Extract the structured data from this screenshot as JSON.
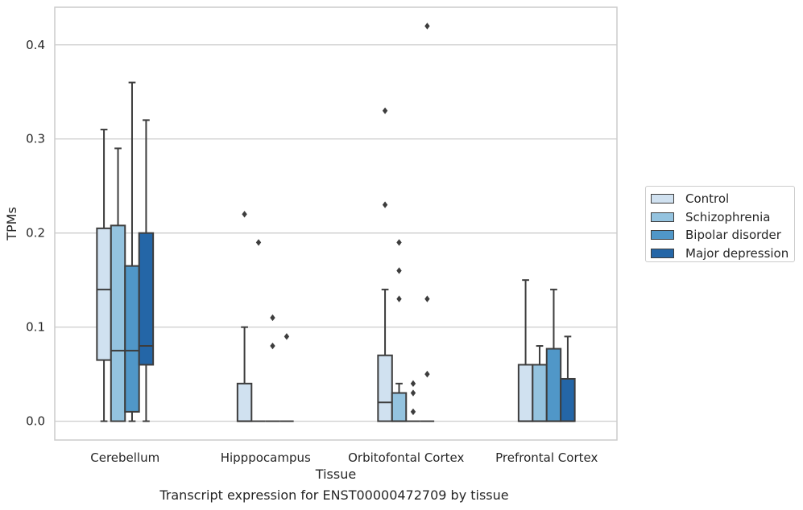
{
  "caption": "Transcript expression for ENST00000472709 by tissue",
  "chart_data": {
    "type": "box",
    "title": "",
    "xlabel": "Tissue",
    "ylabel": "TPMs",
    "ylim": [
      -0.02,
      0.44
    ],
    "yticks": [
      "0.0",
      "0.1",
      "0.2",
      "0.3",
      "0.4"
    ],
    "ytick_values": [
      0.0,
      0.1,
      0.2,
      0.3,
      0.4
    ],
    "grid": true,
    "legend_position": "right",
    "categories": [
      "Cerebellum",
      "Hipppocampus",
      "Orbitofontal Cortex",
      "Prefrontal Cortex"
    ],
    "series": [
      {
        "name": "Control",
        "color": "#d0e1f0",
        "boxes": [
          {
            "whisker_low": 0.0,
            "q1": 0.065,
            "median": 0.14,
            "q3": 0.205,
            "whisker_high": 0.31,
            "outliers": []
          },
          {
            "whisker_low": 0.0,
            "q1": 0.0,
            "median": 0.0,
            "q3": 0.04,
            "whisker_high": 0.1,
            "outliers": [
              0.22
            ]
          },
          {
            "whisker_low": 0.0,
            "q1": 0.0,
            "median": 0.02,
            "q3": 0.07,
            "whisker_high": 0.14,
            "outliers": [
              0.33,
              0.23
            ]
          },
          {
            "whisker_low": 0.0,
            "q1": 0.0,
            "median": 0.0,
            "q3": 0.06,
            "whisker_high": 0.15,
            "outliers": []
          }
        ]
      },
      {
        "name": "Schizophrenia",
        "color": "#94c3df",
        "boxes": [
          {
            "whisker_low": 0.0,
            "q1": 0.0,
            "median": 0.075,
            "q3": 0.208,
            "whisker_high": 0.29,
            "outliers": []
          },
          {
            "whisker_low": 0.0,
            "q1": 0.0,
            "median": 0.0,
            "q3": 0.0,
            "whisker_high": 0.0,
            "outliers": [
              0.19
            ]
          },
          {
            "whisker_low": 0.0,
            "q1": 0.0,
            "median": 0.0,
            "q3": 0.03,
            "whisker_high": 0.04,
            "outliers": [
              0.19,
              0.16,
              0.13
            ]
          },
          {
            "whisker_low": 0.0,
            "q1": 0.0,
            "median": 0.0,
            "q3": 0.06,
            "whisker_high": 0.08,
            "outliers": []
          }
        ]
      },
      {
        "name": "Bipolar disorder",
        "color": "#5097c8",
        "boxes": [
          {
            "whisker_low": 0.0,
            "q1": 0.01,
            "median": 0.075,
            "q3": 0.165,
            "whisker_high": 0.36,
            "outliers": []
          },
          {
            "whisker_low": 0.0,
            "q1": 0.0,
            "median": 0.0,
            "q3": 0.0,
            "whisker_high": 0.0,
            "outliers": [
              0.11,
              0.08
            ]
          },
          {
            "whisker_low": 0.0,
            "q1": 0.0,
            "median": 0.0,
            "q3": 0.0,
            "whisker_high": 0.0,
            "outliers": [
              0.04,
              0.03,
              0.01
            ]
          },
          {
            "whisker_low": 0.0,
            "q1": 0.0,
            "median": 0.0,
            "q3": 0.077,
            "whisker_high": 0.14,
            "outliers": []
          }
        ]
      },
      {
        "name": "Major depression",
        "color": "#2466a7",
        "boxes": [
          {
            "whisker_low": 0.0,
            "q1": 0.06,
            "median": 0.08,
            "q3": 0.2,
            "whisker_high": 0.32,
            "outliers": []
          },
          {
            "whisker_low": 0.0,
            "q1": 0.0,
            "median": 0.0,
            "q3": 0.0,
            "whisker_high": 0.0,
            "outliers": [
              0.09
            ]
          },
          {
            "whisker_low": 0.0,
            "q1": 0.0,
            "median": 0.0,
            "q3": 0.0,
            "whisker_high": 0.0,
            "outliers": [
              0.42,
              0.13,
              0.05
            ]
          },
          {
            "whisker_low": 0.0,
            "q1": 0.0,
            "median": 0.0,
            "q3": 0.045,
            "whisker_high": 0.09,
            "outliers": []
          }
        ]
      }
    ]
  }
}
